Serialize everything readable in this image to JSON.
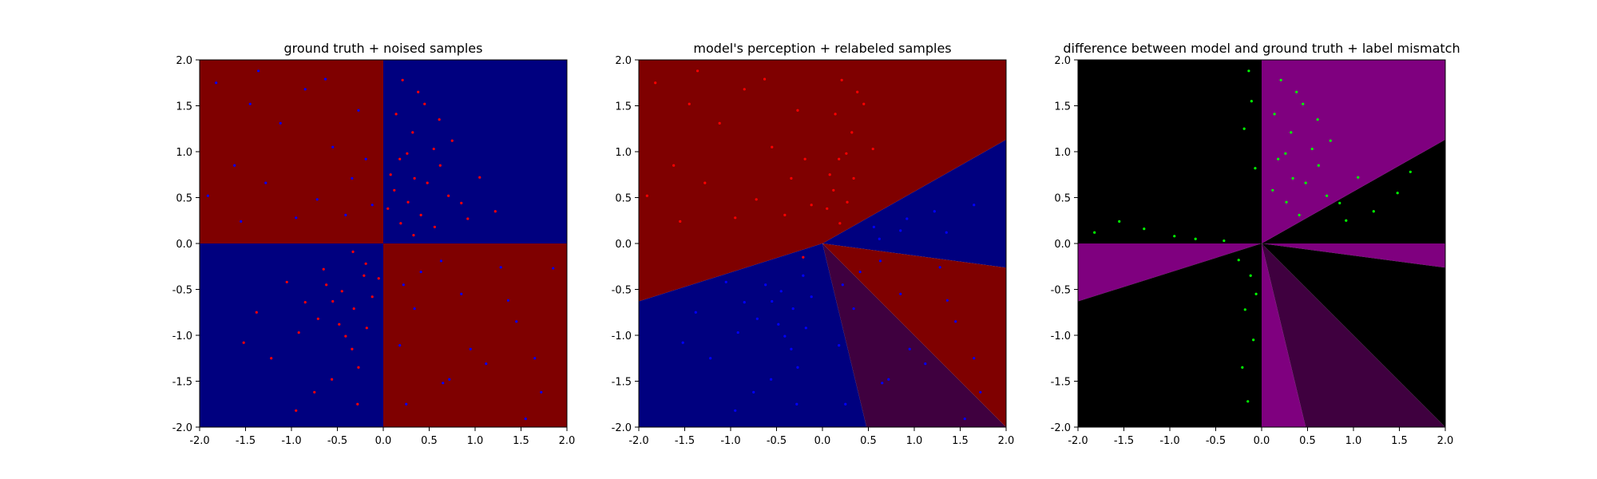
{
  "figure": {
    "background": "#ffffff"
  },
  "colors": {
    "navy": "#00007f",
    "maroon": "#7f0000",
    "purple": "#7f007f",
    "black": "#000000",
    "dark_purple": "#3f003f",
    "blend_region": "#3f003f",
    "red_point": "#ff0000",
    "blue_point": "#0000ff",
    "green_point": "#00ff00"
  },
  "chart_data": [
    {
      "type": "scatter",
      "title": "ground truth + noised samples",
      "xlim": [
        -2.0,
        2.0
      ],
      "ylim": [
        -2.0,
        2.0
      ],
      "xticks": [
        "-2.0",
        "-1.5",
        "-1.0",
        "-0.5",
        "0.0",
        "0.5",
        "1.0",
        "1.5",
        "2.0"
      ],
      "yticks": [
        "-2.0",
        "-1.5",
        "-1.0",
        "-0.5",
        "0.0",
        "0.5",
        "1.0",
        "1.5",
        "2.0"
      ],
      "background_regions": [
        {
          "quadrant": "top-left",
          "color": "maroon"
        },
        {
          "quadrant": "top-right",
          "color": "navy"
        },
        {
          "quadrant": "bottom-left",
          "color": "navy"
        },
        {
          "quadrant": "bottom-right",
          "color": "maroon"
        }
      ],
      "series": [
        {
          "color": "red_point",
          "points": [
            [
              0.21,
              1.78
            ],
            [
              0.45,
              1.52
            ],
            [
              0.32,
              1.21
            ],
            [
              0.55,
              1.03
            ],
            [
              0.18,
              0.92
            ],
            [
              0.62,
              0.85
            ],
            [
              0.34,
              0.71
            ],
            [
              0.48,
              0.66
            ],
            [
              0.12,
              0.58
            ],
            [
              0.27,
              0.45
            ],
            [
              0.71,
              0.52
            ],
            [
              0.05,
              0.38
            ],
            [
              0.41,
              0.31
            ],
            [
              0.85,
              0.44
            ],
            [
              0.19,
              0.22
            ],
            [
              0.56,
              0.18
            ],
            [
              0.33,
              0.09
            ],
            [
              0.92,
              0.27
            ],
            [
              0.14,
              1.41
            ],
            [
              0.38,
              1.65
            ],
            [
              0.61,
              1.35
            ],
            [
              0.26,
              0.98
            ],
            [
              0.08,
              0.75
            ],
            [
              1.05,
              0.72
            ],
            [
              1.22,
              0.35
            ],
            [
              0.75,
              1.12
            ],
            [
              -0.21,
              -0.35
            ],
            [
              -0.45,
              -0.52
            ],
            [
              -0.32,
              -0.71
            ],
            [
              -0.55,
              -0.63
            ],
            [
              -0.18,
              -0.92
            ],
            [
              -0.62,
              -0.45
            ],
            [
              -0.34,
              -1.15
            ],
            [
              -0.48,
              -0.88
            ],
            [
              -0.12,
              -0.58
            ],
            [
              -0.27,
              -1.35
            ],
            [
              -0.71,
              -0.82
            ],
            [
              -0.05,
              -0.38
            ],
            [
              -0.41,
              -1.01
            ],
            [
              -0.85,
              -0.64
            ],
            [
              -0.19,
              -0.22
            ],
            [
              -0.56,
              -1.48
            ],
            [
              -0.33,
              -0.09
            ],
            [
              -0.92,
              -0.97
            ],
            [
              -1.05,
              -0.42
            ],
            [
              -1.22,
              -1.25
            ],
            [
              -0.75,
              -1.62
            ],
            [
              -1.38,
              -0.75
            ],
            [
              -0.65,
              -0.28
            ],
            [
              -0.28,
              -1.75
            ],
            [
              -1.52,
              -1.08
            ],
            [
              -0.95,
              -1.82
            ]
          ]
        },
        {
          "color": "blue_point",
          "points": [
            [
              -1.82,
              1.75
            ],
            [
              -1.45,
              1.52
            ],
            [
              -1.12,
              1.31
            ],
            [
              -0.85,
              1.68
            ],
            [
              -0.55,
              1.05
            ],
            [
              -1.62,
              0.85
            ],
            [
              -0.34,
              0.71
            ],
            [
              -1.28,
              0.66
            ],
            [
              -0.72,
              0.48
            ],
            [
              -0.27,
              1.45
            ],
            [
              -1.91,
              0.52
            ],
            [
              -0.95,
              0.28
            ],
            [
              -0.41,
              0.31
            ],
            [
              -1.55,
              0.24
            ],
            [
              -0.19,
              0.92
            ],
            [
              -1.36,
              1.88
            ],
            [
              -0.63,
              1.79
            ],
            [
              -0.12,
              0.42
            ],
            [
              0.25,
              -1.75
            ],
            [
              0.65,
              -1.52
            ],
            [
              1.12,
              -1.31
            ],
            [
              1.45,
              -0.85
            ],
            [
              0.85,
              -0.55
            ],
            [
              1.72,
              -1.62
            ],
            [
              0.34,
              -0.71
            ],
            [
              1.28,
              -0.26
            ],
            [
              0.72,
              -1.48
            ],
            [
              1.85,
              -0.27
            ],
            [
              0.18,
              -1.11
            ],
            [
              1.55,
              -1.91
            ],
            [
              0.41,
              -0.31
            ],
            [
              0.95,
              -1.15
            ],
            [
              1.36,
              -0.62
            ],
            [
              0.63,
              -0.19
            ],
            [
              1.65,
              -1.25
            ],
            [
              0.22,
              -0.45
            ]
          ]
        }
      ]
    },
    {
      "type": "scatter",
      "title": "model's perception + relabeled samples",
      "xlim": [
        -2.0,
        2.0
      ],
      "ylim": [
        -2.0,
        2.0
      ],
      "xticks": [
        "-2.0",
        "-1.5",
        "-1.0",
        "-0.5",
        "0.0",
        "0.5",
        "1.0",
        "1.5",
        "2.0"
      ],
      "yticks": [
        "-2.0",
        "-1.5",
        "-1.0",
        "-0.5",
        "0.0",
        "0.5",
        "1.0",
        "1.5",
        "2.0"
      ],
      "series": [
        {
          "color": "red_point",
          "points": [
            [
              0.21,
              1.78
            ],
            [
              0.45,
              1.52
            ],
            [
              0.32,
              1.21
            ],
            [
              0.55,
              1.03
            ],
            [
              0.18,
              0.92
            ],
            [
              0.34,
              0.71
            ],
            [
              0.12,
              0.58
            ],
            [
              0.27,
              0.45
            ],
            [
              0.05,
              0.38
            ],
            [
              0.14,
              1.41
            ],
            [
              0.38,
              1.65
            ],
            [
              0.26,
              0.98
            ],
            [
              0.08,
              0.75
            ],
            [
              -1.82,
              1.75
            ],
            [
              -1.45,
              1.52
            ],
            [
              -1.12,
              1.31
            ],
            [
              -0.85,
              1.68
            ],
            [
              -0.55,
              1.05
            ],
            [
              -1.62,
              0.85
            ],
            [
              -0.34,
              0.71
            ],
            [
              -1.28,
              0.66
            ],
            [
              -0.72,
              0.48
            ],
            [
              -0.27,
              1.45
            ],
            [
              -0.95,
              0.28
            ],
            [
              -0.41,
              0.31
            ],
            [
              -0.19,
              0.92
            ],
            [
              -1.36,
              1.88
            ],
            [
              -0.63,
              1.79
            ],
            [
              -0.12,
              0.42
            ],
            [
              -1.91,
              0.52
            ],
            [
              -1.55,
              0.24
            ],
            [
              0.19,
              0.22
            ],
            [
              -0.21,
              -0.15
            ]
          ]
        },
        {
          "color": "blue_point",
          "points": [
            [
              -0.21,
              -0.35
            ],
            [
              -0.45,
              -0.52
            ],
            [
              -0.32,
              -0.71
            ],
            [
              -0.55,
              -0.63
            ],
            [
              -0.18,
              -0.92
            ],
            [
              -0.62,
              -0.45
            ],
            [
              -0.34,
              -1.15
            ],
            [
              -0.48,
              -0.88
            ],
            [
              -0.12,
              -0.58
            ],
            [
              -0.27,
              -1.35
            ],
            [
              -0.71,
              -0.82
            ],
            [
              -0.41,
              -1.01
            ],
            [
              -0.85,
              -0.64
            ],
            [
              -0.56,
              -1.48
            ],
            [
              -0.92,
              -0.97
            ],
            [
              -1.05,
              -0.42
            ],
            [
              -1.22,
              -1.25
            ],
            [
              -0.75,
              -1.62
            ],
            [
              -1.38,
              -0.75
            ],
            [
              -0.28,
              -1.75
            ],
            [
              -1.52,
              -1.08
            ],
            [
              -0.95,
              -1.82
            ],
            [
              0.25,
              -1.75
            ],
            [
              0.65,
              -1.52
            ],
            [
              1.12,
              -1.31
            ],
            [
              1.45,
              -0.85
            ],
            [
              0.85,
              -0.55
            ],
            [
              1.72,
              -1.62
            ],
            [
              0.34,
              -0.71
            ],
            [
              1.28,
              -0.26
            ],
            [
              0.72,
              -1.48
            ],
            [
              0.18,
              -1.11
            ],
            [
              1.55,
              -1.91
            ],
            [
              0.41,
              -0.31
            ],
            [
              0.95,
              -1.15
            ],
            [
              1.36,
              -0.62
            ],
            [
              0.63,
              -0.19
            ],
            [
              1.65,
              -1.25
            ],
            [
              0.22,
              -0.45
            ],
            [
              0.62,
              0.05
            ],
            [
              0.85,
              0.14
            ],
            [
              0.92,
              0.27
            ],
            [
              1.22,
              0.35
            ],
            [
              1.35,
              0.12
            ],
            [
              1.65,
              0.42
            ],
            [
              0.56,
              0.18
            ]
          ]
        }
      ]
    },
    {
      "type": "scatter",
      "title": "difference between model and ground truth + label mismatch",
      "xlim": [
        -2.0,
        2.0
      ],
      "ylim": [
        -2.0,
        2.0
      ],
      "xticks": [
        "-2.0",
        "-1.5",
        "-1.0",
        "-0.5",
        "0.0",
        "0.5",
        "1.0",
        "1.5",
        "2.0"
      ],
      "yticks": [
        "-2.0",
        "-1.5",
        "-1.0",
        "-0.5",
        "0.0",
        "0.5",
        "1.0",
        "1.5",
        "2.0"
      ],
      "series": [
        {
          "color": "green_point",
          "points": [
            [
              0.21,
              1.78
            ],
            [
              0.45,
              1.52
            ],
            [
              0.32,
              1.21
            ],
            [
              0.55,
              1.03
            ],
            [
              0.18,
              0.92
            ],
            [
              0.62,
              0.85
            ],
            [
              0.34,
              0.71
            ],
            [
              0.48,
              0.66
            ],
            [
              0.12,
              0.58
            ],
            [
              0.27,
              0.45
            ],
            [
              0.71,
              0.52
            ],
            [
              0.41,
              0.31
            ],
            [
              0.85,
              0.44
            ],
            [
              0.14,
              1.41
            ],
            [
              0.38,
              1.65
            ],
            [
              0.61,
              1.35
            ],
            [
              0.26,
              0.98
            ],
            [
              1.05,
              0.72
            ],
            [
              1.22,
              0.35
            ],
            [
              0.75,
              1.12
            ],
            [
              1.48,
              0.55
            ],
            [
              1.62,
              0.78
            ],
            [
              0.92,
              0.25
            ],
            [
              -1.82,
              0.12
            ],
            [
              -1.55,
              0.24
            ],
            [
              -1.28,
              0.16
            ],
            [
              -0.95,
              0.08
            ],
            [
              -0.72,
              0.05
            ],
            [
              -0.41,
              0.03
            ],
            [
              -0.12,
              -0.35
            ],
            [
              -0.18,
              -0.72
            ],
            [
              -0.09,
              -1.05
            ],
            [
              -0.21,
              -1.35
            ],
            [
              -0.15,
              -1.72
            ],
            [
              -0.06,
              -0.55
            ],
            [
              -0.25,
              -0.18
            ],
            [
              -0.11,
              1.55
            ],
            [
              -0.19,
              1.25
            ],
            [
              -0.07,
              0.82
            ],
            [
              -0.14,
              1.88
            ]
          ]
        }
      ]
    }
  ]
}
